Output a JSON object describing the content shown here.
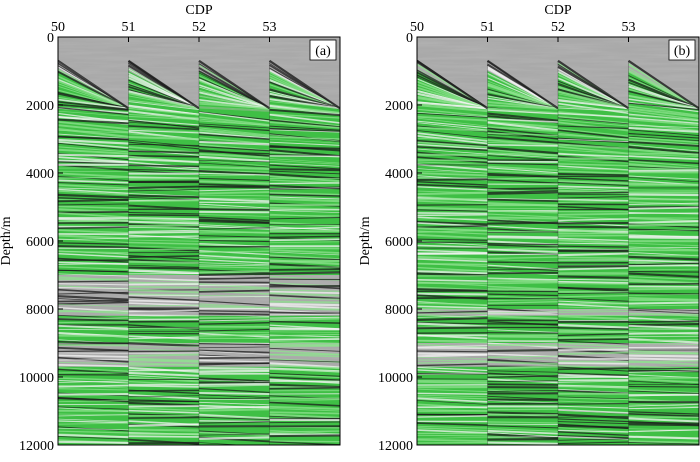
{
  "figure": {
    "colors": {
      "background_gray": "#a9a9a9",
      "reflector_green": "#3fbf45",
      "green_light": "#8fe18f",
      "dark_event": "#1c1c1c",
      "white_event": "#f4f4f4",
      "frame": "#000000"
    }
  },
  "chart_data": [
    {
      "type": "heatmap",
      "panel_label": "(a)",
      "title": "",
      "xlabel": "CDP",
      "ylabel": "Depth/m",
      "x_ticks": [
        "50",
        "51",
        "52",
        "53"
      ],
      "y_ticks": [
        "0",
        "2000",
        "4000",
        "6000",
        "8000",
        "10000",
        "12000"
      ],
      "xlim": [
        50,
        54
      ],
      "ylim": [
        0,
        12000
      ],
      "y_inverted": true,
      "gathers": [
        {
          "cdp": 50,
          "top_depth_start": 700,
          "top_depth_end": 2100
        },
        {
          "cdp": 51,
          "top_depth_start": 700,
          "top_depth_end": 2100
        },
        {
          "cdp": 52,
          "top_depth_start": 700,
          "top_depth_end": 2100
        },
        {
          "cdp": 53,
          "top_depth_start": 700,
          "top_depth_end": 2100
        }
      ],
      "green_zones_depth": [
        [
          1000,
          7000
        ],
        [
          8200,
          9000
        ],
        [
          9700,
          12000
        ]
      ],
      "gray_zones_depth": [
        [
          7000,
          8200
        ],
        [
          9000,
          9700
        ]
      ]
    },
    {
      "type": "heatmap",
      "panel_label": "(b)",
      "title": "",
      "xlabel": "CDP",
      "ylabel": "Depth/m",
      "x_ticks": [
        "50",
        "51",
        "52",
        "53"
      ],
      "y_ticks": [
        "0",
        "2000",
        "4000",
        "6000",
        "8000",
        "10000",
        "12000"
      ],
      "xlim": [
        50,
        54
      ],
      "ylim": [
        0,
        12000
      ],
      "y_inverted": true,
      "gathers": [
        {
          "cdp": 50,
          "top_depth_start": 700,
          "top_depth_end": 2100
        },
        {
          "cdp": 51,
          "top_depth_start": 700,
          "top_depth_end": 2100
        },
        {
          "cdp": 52,
          "top_depth_start": 700,
          "top_depth_end": 2100
        },
        {
          "cdp": 53,
          "top_depth_start": 700,
          "top_depth_end": 2100
        }
      ],
      "green_zones_depth": [
        [
          1000,
          7200
        ],
        [
          7200,
          8000
        ],
        [
          8200,
          9000
        ],
        [
          9700,
          12000
        ]
      ],
      "gray_zones_depth": [
        [
          8000,
          8200
        ],
        [
          9000,
          9700
        ]
      ]
    }
  ]
}
